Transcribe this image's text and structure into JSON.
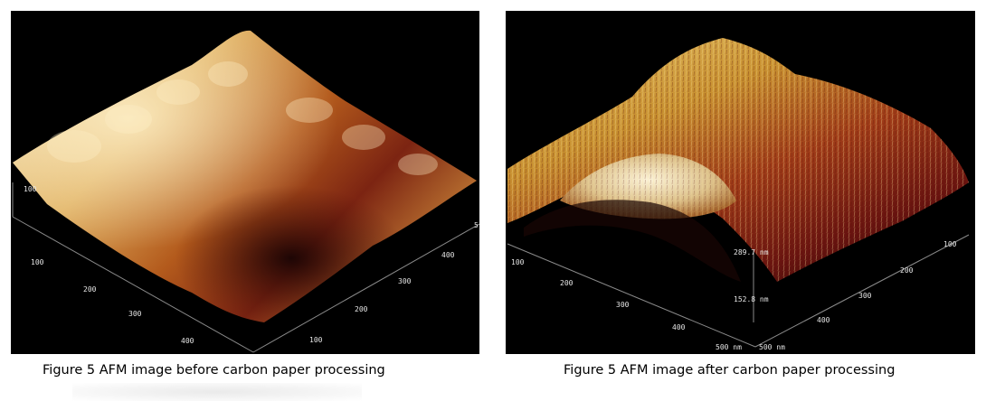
{
  "figures": [
    {
      "caption": "Figure 5 AFM image before carbon paper processing",
      "axis_ticks": {
        "left_side": [
          "100",
          "100",
          "200",
          "300",
          "400"
        ],
        "right_side": [
          "100",
          "200",
          "300",
          "400"
        ],
        "edge_mark": "5"
      }
    },
    {
      "caption": "Figure 5 AFM image after carbon paper processing",
      "axis_ticks": {
        "left_side": [
          "100",
          "200",
          "300",
          "400",
          "500 nm"
        ],
        "right_side": [
          "100",
          "200",
          "300",
          "400",
          "500 nm"
        ],
        "z_top": "289.7 nm",
        "z_bottom": "152.8 nm"
      }
    }
  ],
  "colors": {
    "surface_light": "#f0dca8",
    "surface_gold": "#d2a040",
    "surface_rust": "#a83c14",
    "surface_dark": "#3a0a08",
    "background": "#000000"
  }
}
